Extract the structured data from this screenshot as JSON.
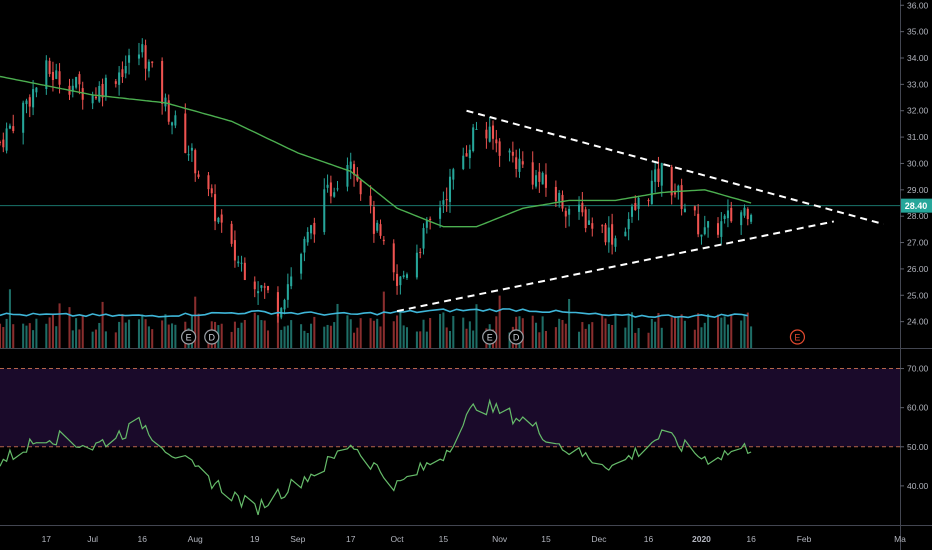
{
  "colors": {
    "background": "#000000",
    "up": "#26a69a",
    "down": "#ef5350",
    "vol_up": "#1e6d66",
    "vol_down": "#8a2e2e",
    "sma": "#4caf50",
    "vol_ma": "#3fb6d8",
    "trendline": "#ffffff",
    "rsi_line": "#66bb6a",
    "rsi_band": "#1a0a2a",
    "rsi_band_border": "#b4654a",
    "last_price_bg": "#26a69a",
    "earnings_marker": "#e34a2f",
    "axis_text": "#b2b5be",
    "grid_line": "#2a2e39"
  },
  "chart_data": [
    {
      "type": "candlestick",
      "title": "",
      "last_price_label": "28.40",
      "last_price": 28.4,
      "yaxis": {
        "ticks": [
          "36.00",
          "35.00",
          "34.00",
          "33.00",
          "32.00",
          "31.00",
          "30.00",
          "29.00",
          "28.00",
          "27.00",
          "26.00",
          "25.00",
          "24.00"
        ],
        "range": [
          23.0,
          36.2
        ]
      },
      "xaxis": {
        "ticks": [
          "17",
          "Jul",
          "16",
          "Aug",
          "19",
          "Sep",
          "17",
          "Oct",
          "15",
          "Nov",
          "15",
          "Dec",
          "16",
          "2020",
          "16",
          "Feb",
          "Ma"
        ],
        "range": [
          "2019-06-03",
          "2020-03-01"
        ]
      },
      "ohlc_samples": [
        [
          "2019-06-03",
          31.0,
          31.3,
          30.4,
          30.8
        ],
        [
          "2019-06-17",
          32.8,
          33.8,
          32.4,
          33.5
        ],
        [
          "2019-07-01",
          33.0,
          33.4,
          32.2,
          32.6
        ],
        [
          "2019-07-16",
          33.6,
          34.8,
          33.2,
          34.3
        ],
        [
          "2019-07-23",
          34.0,
          35.0,
          32.0,
          32.2
        ],
        [
          "2019-08-01",
          31.2,
          31.5,
          29.8,
          30.0
        ],
        [
          "2019-08-12",
          28.0,
          28.5,
          26.3,
          26.6
        ],
        [
          "2019-08-19",
          26.4,
          27.0,
          25.3,
          25.6
        ],
        [
          "2019-08-26",
          25.6,
          26.2,
          24.4,
          24.6
        ],
        [
          "2019-09-09",
          27.5,
          28.8,
          27.2,
          28.6
        ],
        [
          "2019-09-17",
          29.6,
          30.7,
          29.4,
          30.4
        ],
        [
          "2019-09-23",
          28.4,
          28.8,
          27.6,
          28.0
        ],
        [
          "2019-10-01",
          26.8,
          27.3,
          24.8,
          25.3
        ],
        [
          "2019-10-15",
          27.6,
          29.0,
          27.4,
          28.7
        ],
        [
          "2019-10-25",
          29.6,
          31.8,
          29.4,
          31.4
        ],
        [
          "2019-11-08",
          31.0,
          31.4,
          29.5,
          29.9
        ],
        [
          "2019-11-22",
          29.4,
          29.8,
          28.1,
          28.3
        ],
        [
          "2019-12-06",
          27.8,
          28.4,
          26.9,
          27.2
        ],
        [
          "2019-12-20",
          28.8,
          29.9,
          28.5,
          29.7
        ],
        [
          "2020-01-02",
          28.0,
          28.4,
          27.0,
          27.3
        ],
        [
          "2020-01-16",
          27.9,
          28.6,
          27.7,
          28.4
        ]
      ],
      "sma": [
        [
          "2019-06-03",
          33.3
        ],
        [
          "2019-07-01",
          32.6
        ],
        [
          "2019-07-23",
          32.3
        ],
        [
          "2019-08-12",
          31.6
        ],
        [
          "2019-09-01",
          30.4
        ],
        [
          "2019-09-17",
          29.7
        ],
        [
          "2019-10-01",
          28.3
        ],
        [
          "2019-10-15",
          27.6
        ],
        [
          "2019-10-25",
          27.6
        ],
        [
          "2019-11-08",
          28.3
        ],
        [
          "2019-11-22",
          28.6
        ],
        [
          "2019-12-06",
          28.6
        ],
        [
          "2019-12-20",
          28.9
        ],
        [
          "2020-01-02",
          29.0
        ],
        [
          "2020-01-16",
          28.5
        ]
      ],
      "trendlines": [
        {
          "from": [
            "2019-10-22",
            32.0
          ],
          "to": [
            "2020-02-25",
            27.7
          ]
        },
        {
          "from": [
            "2019-10-01",
            24.4
          ],
          "to": [
            "2020-02-10",
            27.8
          ]
        }
      ],
      "volume": {
        "ma_samples": [
          [
            "2019-06-03",
            0.42
          ],
          [
            "2019-07-16",
            0.4
          ],
          [
            "2019-08-19",
            0.45
          ],
          [
            "2019-09-17",
            0.42
          ],
          [
            "2019-10-15",
            0.47
          ],
          [
            "2019-11-08",
            0.48
          ],
          [
            "2019-12-06",
            0.4
          ],
          [
            "2020-01-02",
            0.4
          ],
          [
            "2020-01-16",
            0.42
          ]
        ]
      },
      "event_markers": [
        {
          "date": "2019-07-30",
          "label": "E"
        },
        {
          "date": "2019-08-06",
          "label": "D"
        },
        {
          "date": "2019-10-29",
          "label": "E"
        },
        {
          "date": "2019-11-06",
          "label": "D"
        },
        {
          "date": "2020-01-30",
          "label": "E",
          "future": true
        }
      ]
    },
    {
      "type": "line",
      "title": "",
      "yaxis": {
        "ticks": [
          "70.00",
          "60.00",
          "50.00",
          "40.00"
        ],
        "range": [
          30,
          75
        ]
      },
      "bands": [
        {
          "from": 50,
          "to": 70
        }
      ],
      "series": [
        {
          "values": [
            [
              "2019-06-03",
              46
            ],
            [
              "2019-06-17",
              53
            ],
            [
              "2019-07-01",
              50
            ],
            [
              "2019-07-16",
              56
            ],
            [
              "2019-07-23",
              50
            ],
            [
              "2019-08-01",
              44
            ],
            [
              "2019-08-19",
              34
            ],
            [
              "2019-08-26",
              38
            ],
            [
              "2019-09-09",
              45
            ],
            [
              "2019-09-17",
              51
            ],
            [
              "2019-09-23",
              46
            ],
            [
              "2019-10-01",
              40
            ],
            [
              "2019-10-15",
              48
            ],
            [
              "2019-10-25",
              61
            ],
            [
              "2019-11-08",
              57
            ],
            [
              "2019-11-22",
              49
            ],
            [
              "2019-12-06",
              45
            ],
            [
              "2019-12-20",
              53
            ],
            [
              "2020-01-02",
              47
            ],
            [
              "2020-01-16",
              50
            ]
          ]
        }
      ]
    }
  ]
}
